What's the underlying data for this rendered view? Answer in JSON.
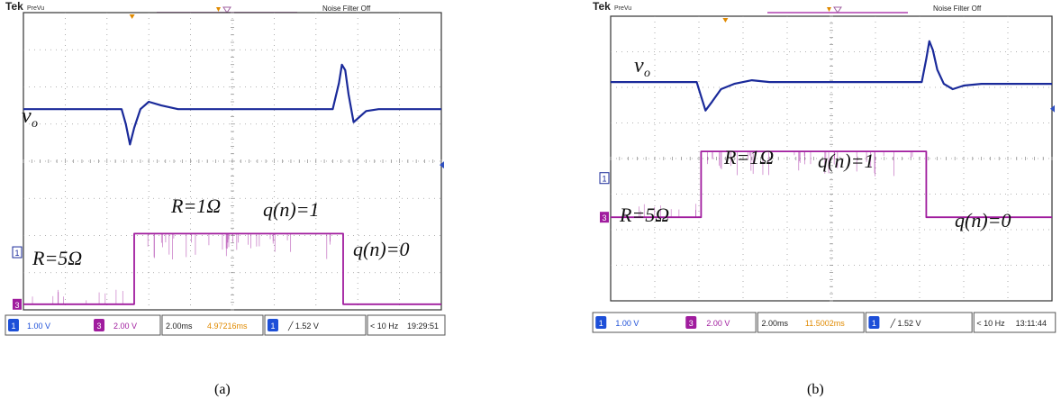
{
  "chart_data": [
    {
      "type": "line",
      "caption": "(a)",
      "header": {
        "brand": "Tek",
        "mode": "PreVu",
        "noise_filter": "Noise Filter Off"
      },
      "channels": [
        {
          "id": "1",
          "name": "v_o",
          "color": "#1a2a9a",
          "scale": "1.00 V"
        },
        {
          "id": "3",
          "name": "q(n)",
          "color": "#a01c9e",
          "scale": "2.00 V"
        }
      ],
      "statusbar": {
        "ch1_num": "1",
        "ch1_scale": "1.00 V",
        "ch3_num": "3",
        "ch3_scale": "2.00 V",
        "timebase": "2.00ms",
        "position": "4.97216ms",
        "trig_num": "1",
        "trigger": "╱ 1.52 V",
        "freq": "< 10 Hz",
        "time": "19:29:51"
      },
      "grid": {
        "divisions_x": 10,
        "divisions_y": 8,
        "visible": true
      },
      "x_range_div": [
        0,
        10
      ],
      "y_range_div": [
        0,
        8
      ],
      "annotations": {
        "vo": "v",
        "vo_sub": "o",
        "r_low": "R=5Ω",
        "r_high": "R=1Ω",
        "q1": "q(n)=1",
        "q0": "q(n)=0"
      },
      "markers": {
        "ch1_ref": "1",
        "ch3_ref": "3"
      },
      "series": [
        {
          "name": "v_o",
          "x": [
            0,
            2.35,
            2.45,
            2.55,
            2.65,
            2.8,
            3.0,
            3.3,
            3.7,
            7.4,
            7.55,
            7.62,
            7.7,
            7.78,
            7.9,
            8.05,
            8.2,
            8.5,
            10
          ],
          "y": [
            5.4,
            5.4,
            5.0,
            4.45,
            4.9,
            5.4,
            5.6,
            5.5,
            5.4,
            5.4,
            6.1,
            6.6,
            6.45,
            5.8,
            5.05,
            5.2,
            5.35,
            5.4,
            5.4
          ]
        },
        {
          "name": "q(n)",
          "x": [
            0,
            2.65,
            2.65,
            7.65,
            7.65,
            10
          ],
          "y": [
            0.15,
            0.15,
            2.05,
            2.05,
            0.15,
            0.15
          ]
        }
      ]
    },
    {
      "type": "line",
      "caption": "(b)",
      "header": {
        "brand": "Tek",
        "mode": "PreVu",
        "noise_filter": "Noise Filter Off"
      },
      "channels": [
        {
          "id": "1",
          "name": "v_o",
          "color": "#1a2a9a",
          "scale": "1.00 V"
        },
        {
          "id": "3",
          "name": "q(n)",
          "color": "#a01c9e",
          "scale": "2.00 V"
        }
      ],
      "statusbar": {
        "ch1_num": "1",
        "ch1_scale": "1.00 V",
        "ch3_num": "3",
        "ch3_scale": "2.00 V",
        "timebase": "2.00ms",
        "position": "11.5002ms",
        "trig_num": "1",
        "trigger": "╱ 1.52 V",
        "freq": "< 10 Hz",
        "time": "13:11:44"
      },
      "grid": {
        "divisions_x": 10,
        "divisions_y": 8,
        "visible": true
      },
      "x_range_div": [
        0,
        10
      ],
      "y_range_div": [
        0,
        8
      ],
      "annotations": {
        "vo": "v",
        "vo_sub": "o",
        "r_low": "R=5Ω",
        "r_high": "R=1Ω",
        "q1": "q(n)=1",
        "q0": "q(n)=0"
      },
      "markers": {
        "ch1_ref": "1",
        "ch3_ref": "3"
      },
      "series": [
        {
          "name": "v_o",
          "x": [
            0,
            1.95,
            2.05,
            2.15,
            2.3,
            2.5,
            2.8,
            3.2,
            3.6,
            7.05,
            7.15,
            7.22,
            7.3,
            7.4,
            7.55,
            7.75,
            8.0,
            8.4,
            10
          ],
          "y": [
            6.15,
            6.15,
            5.75,
            5.35,
            5.6,
            5.95,
            6.1,
            6.2,
            6.15,
            6.15,
            6.8,
            7.3,
            7.05,
            6.5,
            6.1,
            5.95,
            6.05,
            6.1,
            6.1
          ]
        },
        {
          "name": "q(n)",
          "x": [
            0,
            2.05,
            2.05,
            7.15,
            7.15,
            10
          ],
          "y": [
            2.35,
            2.35,
            4.2,
            4.2,
            2.35,
            2.35
          ]
        }
      ]
    }
  ]
}
